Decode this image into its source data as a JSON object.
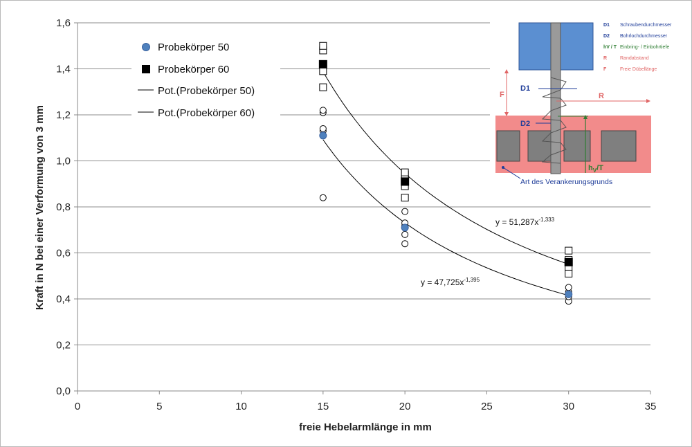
{
  "chart_data": {
    "type": "scatter",
    "xlabel": "freie Hebelarmlänge in mm",
    "ylabel": "Kraft in N bei einer Verformung von 3 mm",
    "xlim": [
      0,
      35
    ],
    "ylim": [
      0,
      1.6
    ],
    "x_ticks": [
      "0",
      "5",
      "10",
      "15",
      "20",
      "25",
      "30",
      "35"
    ],
    "y_ticks": [
      "0,0",
      "0,2",
      "0,4",
      "0,6",
      "0,8",
      "1,0",
      "1,2",
      "1,4",
      "1,6"
    ],
    "grid": "horizontal",
    "legend_position": "top-left",
    "series": [
      {
        "name": "Probekörper 50",
        "color": "#4f81bd",
        "marker": "circle",
        "mean_points": [
          {
            "x": 15,
            "y": 1.11
          },
          {
            "x": 20,
            "y": 0.71
          },
          {
            "x": 30,
            "y": 0.42
          }
        ],
        "individual_points": [
          {
            "x": 15,
            "y": 0.84
          },
          {
            "x": 15,
            "y": 1.13
          },
          {
            "x": 15,
            "y": 1.14
          },
          {
            "x": 15,
            "y": 1.21
          },
          {
            "x": 15,
            "y": 1.22
          },
          {
            "x": 20,
            "y": 0.64
          },
          {
            "x": 20,
            "y": 0.68
          },
          {
            "x": 20,
            "y": 0.72
          },
          {
            "x": 20,
            "y": 0.73
          },
          {
            "x": 20,
            "y": 0.78
          },
          {
            "x": 30,
            "y": 0.39
          },
          {
            "x": 30,
            "y": 0.41
          },
          {
            "x": 30,
            "y": 0.42
          },
          {
            "x": 30,
            "y": 0.43
          },
          {
            "x": 30,
            "y": 0.45
          }
        ]
      },
      {
        "name": "Probekörper 60",
        "color": "#000000",
        "marker": "square",
        "mean_points": [
          {
            "x": 15,
            "y": 1.42
          },
          {
            "x": 20,
            "y": 0.91
          },
          {
            "x": 30,
            "y": 0.56
          }
        ],
        "individual_points": [
          {
            "x": 15,
            "y": 1.32
          },
          {
            "x": 15,
            "y": 1.39
          },
          {
            "x": 15,
            "y": 1.48
          },
          {
            "x": 15,
            "y": 1.5
          },
          {
            "x": 20,
            "y": 0.84
          },
          {
            "x": 20,
            "y": 0.89
          },
          {
            "x": 20,
            "y": 0.92
          },
          {
            "x": 20,
            "y": 0.94
          },
          {
            "x": 20,
            "y": 0.95
          },
          {
            "x": 30,
            "y": 0.51
          },
          {
            "x": 30,
            "y": 0.54
          },
          {
            "x": 30,
            "y": 0.57
          },
          {
            "x": 30,
            "y": 0.61
          }
        ]
      }
    ],
    "trendlines": [
      {
        "name": "Pot.(Probekörper 50)",
        "a": 47.725,
        "b": -1.395,
        "equation_base": "y = 47,725x",
        "equation_exp": "-1,395"
      },
      {
        "name": "Pot.(Probekörper 60)",
        "a": 51.287,
        "b": -1.333,
        "equation_base": "y = 51,287x",
        "equation_exp": "-1,333"
      }
    ]
  },
  "inset": {
    "labels": {
      "d1": "D1",
      "d2": "D2",
      "f": "F",
      "r": "R",
      "h_main": "h",
      "h_sub": "V",
      "h_rest": "/T",
      "caption": "Art des Verankerungsgrunds"
    },
    "legend": [
      {
        "key": "D1",
        "text": "Schraubendurchmesser",
        "color": "#1f3d99"
      },
      {
        "key": "D2",
        "text": "Bohrlochdurchmesser",
        "color": "#1f3d99"
      },
      {
        "key": "hV / T",
        "text": "Einbring- / Einbohrtiefe",
        "color": "#2e7d32"
      },
      {
        "key": "R",
        "text": "Randabstand",
        "color": "#e06666"
      },
      {
        "key": "F",
        "text": "Freie Dübellänge",
        "color": "#e06666"
      }
    ],
    "colors": {
      "top_block": "#5b8fd1",
      "bottom_block": "#f28b8b",
      "hole": "#7f7f7f",
      "screw": "#9a9a9a",
      "dim_dark": "#1f3d99",
      "dim_red": "#e06666",
      "dim_green": "#2e7d32"
    }
  }
}
